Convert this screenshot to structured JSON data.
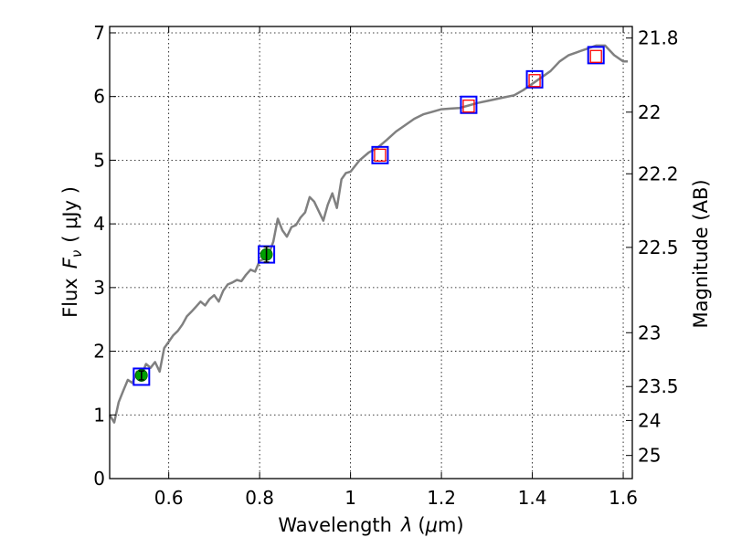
{
  "chart_data": {
    "type": "line",
    "xlabel_main": "Wavelength",
    "xlabel_symbol": "λ",
    "xlabel_unit_open": "(",
    "xlabel_unit_mu": "μ",
    "xlabel_unit_close": "m)",
    "ylabel_main": "Flux",
    "ylabel_symbol": "F",
    "ylabel_subscript": "ν",
    "ylabel_unit": "( μJy )",
    "y2label": "Magnitude (AB)",
    "xlim": [
      0.47,
      1.62
    ],
    "ylim": [
      0,
      7.1
    ],
    "grid": true,
    "x_ticks": [
      {
        "value": 0.6,
        "label": "0.6"
      },
      {
        "value": 0.8,
        "label": "0.8"
      },
      {
        "value": 1.0,
        "label": "1"
      },
      {
        "value": 1.2,
        "label": "1.2"
      },
      {
        "value": 1.4,
        "label": "1.4"
      },
      {
        "value": 1.6,
        "label": "1.6"
      }
    ],
    "y_ticks": [
      {
        "value": 0,
        "label": "0"
      },
      {
        "value": 1,
        "label": "1"
      },
      {
        "value": 2,
        "label": "2"
      },
      {
        "value": 3,
        "label": "3"
      },
      {
        "value": 4,
        "label": "4"
      },
      {
        "value": 5,
        "label": "5"
      },
      {
        "value": 6,
        "label": "6"
      },
      {
        "value": 7,
        "label": "7"
      }
    ],
    "mag_ticks": [
      {
        "mag": 21.8,
        "label": "21.8"
      },
      {
        "mag": 22.0,
        "label": "22"
      },
      {
        "mag": 22.2,
        "label": "22.2"
      },
      {
        "mag": 22.5,
        "label": "22.5"
      },
      {
        "mag": 23.0,
        "label": "23"
      },
      {
        "mag": 23.5,
        "label": "23.5"
      },
      {
        "mag": 24.0,
        "label": "24"
      },
      {
        "mag": 25.0,
        "label": "25"
      }
    ],
    "mag_zeropoint_flux_ujy": 3631000000,
    "model_color": "#808080",
    "model_x": [
      0.47,
      0.48,
      0.49,
      0.5,
      0.51,
      0.52,
      0.53,
      0.54,
      0.55,
      0.56,
      0.57,
      0.58,
      0.59,
      0.6,
      0.61,
      0.62,
      0.63,
      0.64,
      0.65,
      0.66,
      0.67,
      0.68,
      0.69,
      0.7,
      0.71,
      0.72,
      0.73,
      0.74,
      0.75,
      0.76,
      0.77,
      0.78,
      0.79,
      0.8,
      0.81,
      0.82,
      0.83,
      0.84,
      0.85,
      0.86,
      0.87,
      0.88,
      0.89,
      0.9,
      0.91,
      0.92,
      0.93,
      0.94,
      0.95,
      0.96,
      0.97,
      0.98,
      0.99,
      1.0,
      1.02,
      1.04,
      1.06,
      1.08,
      1.1,
      1.12,
      1.14,
      1.16,
      1.18,
      1.2,
      1.22,
      1.24,
      1.26,
      1.28,
      1.3,
      1.32,
      1.34,
      1.36,
      1.38,
      1.4,
      1.42,
      1.44,
      1.46,
      1.48,
      1.5,
      1.52,
      1.54,
      1.56,
      1.58,
      1.6,
      1.61
    ],
    "model_y": [
      1.0,
      0.88,
      1.2,
      1.38,
      1.55,
      1.5,
      1.68,
      1.62,
      1.8,
      1.74,
      1.83,
      1.68,
      2.05,
      2.15,
      2.25,
      2.32,
      2.42,
      2.55,
      2.62,
      2.7,
      2.78,
      2.72,
      2.82,
      2.88,
      2.78,
      2.95,
      3.05,
      3.08,
      3.12,
      3.1,
      3.2,
      3.28,
      3.25,
      3.42,
      3.45,
      3.52,
      3.72,
      4.08,
      3.9,
      3.8,
      3.95,
      3.98,
      4.1,
      4.18,
      4.42,
      4.35,
      4.2,
      4.05,
      4.3,
      4.48,
      4.25,
      4.7,
      4.8,
      4.82,
      5.0,
      5.12,
      5.2,
      5.32,
      5.45,
      5.55,
      5.65,
      5.72,
      5.76,
      5.8,
      5.81,
      5.82,
      5.86,
      5.9,
      5.93,
      5.96,
      5.99,
      6.02,
      6.1,
      6.2,
      6.3,
      6.4,
      6.55,
      6.65,
      6.7,
      6.75,
      6.8,
      6.8,
      6.65,
      6.55,
      6.55
    ],
    "model_points": [
      {
        "x": 0.54,
        "y": 1.6
      },
      {
        "x": 0.815,
        "y": 3.52
      },
      {
        "x": 1.065,
        "y": 5.08
      },
      {
        "x": 1.26,
        "y": 5.87
      },
      {
        "x": 1.405,
        "y": 6.27
      },
      {
        "x": 1.54,
        "y": 6.65
      }
    ],
    "model_marker_color": "#0000ff",
    "observed": [
      {
        "x": 0.54,
        "y": 1.62,
        "err": 0.07
      },
      {
        "x": 0.815,
        "y": 3.52,
        "err": 0.12
      }
    ],
    "observed_color": "#00a000",
    "upper_limits": [
      {
        "x": 1.065,
        "y": 5.08
      },
      {
        "x": 1.26,
        "y": 5.85
      },
      {
        "x": 1.405,
        "y": 6.25
      },
      {
        "x": 1.54,
        "y": 6.63
      }
    ],
    "upper_limit_color": "#ff0000"
  }
}
